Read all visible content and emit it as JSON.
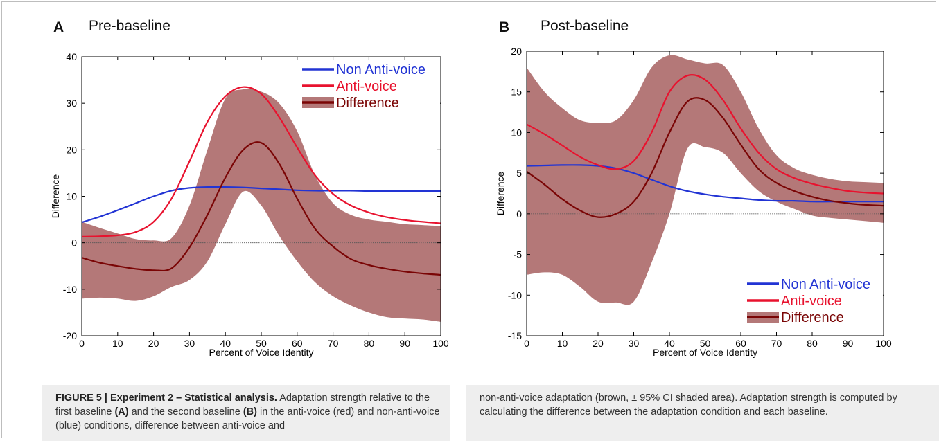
{
  "figure": {
    "panels": [
      {
        "letter": "A",
        "title": "Pre-baseline"
      },
      {
        "letter": "B",
        "title": "Post-baseline"
      }
    ],
    "caption": {
      "label": "FIGURE 5 | Experiment 2 – Statistical analysis.",
      "t1": " Adaptation strength relative to the first baseline ",
      "a": "(A)",
      "t2": " and the second baseline ",
      "b": "(B)",
      "t3": " in the anti-voice (red) and non-anti-voice (blue) conditions, difference between anti-voice and",
      "right": "non-anti-voice adaptation (brown, ± 95% CI shaded area). Adaptation strength is computed by calculating the difference between the adaptation condition and each baseline."
    }
  },
  "colors": {
    "non_anti": "#2234d4",
    "anti": "#e8122e",
    "difference": "#7a0505",
    "ci": "#b47878",
    "zero": "#555555"
  },
  "chart_data": [
    {
      "type": "line",
      "title": "Pre-baseline",
      "xlabel": "Percent of Voice Identity",
      "ylabel": "Difference",
      "xlim": [
        0,
        100
      ],
      "ylim": [
        -20,
        40
      ],
      "xticks": [
        0,
        10,
        20,
        30,
        40,
        50,
        60,
        70,
        80,
        90,
        100
      ],
      "yticks": [
        -20,
        -10,
        0,
        10,
        20,
        30,
        40
      ],
      "x": [
        0,
        5,
        10,
        15,
        20,
        25,
        30,
        35,
        40,
        45,
        50,
        55,
        60,
        65,
        70,
        75,
        80,
        85,
        90,
        95,
        100
      ],
      "series": [
        {
          "name": "Non Anti-voice",
          "key": "non_anti",
          "values": [
            4.4,
            5.6,
            7.0,
            8.5,
            10.0,
            11.2,
            11.8,
            12.0,
            12.0,
            11.9,
            11.7,
            11.5,
            11.3,
            11.2,
            11.2,
            11.2,
            11.1,
            11.1,
            11.1,
            11.1,
            11.1
          ]
        },
        {
          "name": "Anti-voice",
          "key": "anti",
          "values": [
            1.3,
            1.4,
            1.6,
            2.3,
            4.5,
            9.5,
            17.5,
            26.0,
            31.5,
            33.5,
            32.0,
            27.0,
            20.5,
            14.5,
            10.5,
            8.0,
            6.5,
            5.5,
            4.9,
            4.5,
            4.2
          ]
        },
        {
          "name": "Difference",
          "key": "difference",
          "values": [
            -3.2,
            -4.3,
            -5.0,
            -5.6,
            -5.9,
            -5.5,
            -1.0,
            6.0,
            14.0,
            20.0,
            21.5,
            17.0,
            9.5,
            3.0,
            -0.8,
            -3.5,
            -4.8,
            -5.6,
            -6.2,
            -6.6,
            -6.9
          ]
        }
      ],
      "ci_upper": [
        4.5,
        3.2,
        2.0,
        0.8,
        0.5,
        1.0,
        8.0,
        20.0,
        31.0,
        33.0,
        32.5,
        30.0,
        24.0,
        14.5,
        8.5,
        6.0,
        5.0,
        4.5,
        4.0,
        3.8,
        3.6
      ],
      "ci_lower": [
        -12.0,
        -11.8,
        -12.0,
        -12.5,
        -11.5,
        -9.5,
        -8.0,
        -4.0,
        4.0,
        11.0,
        8.0,
        1.5,
        -4.0,
        -8.5,
        -11.5,
        -13.5,
        -15.0,
        -16.0,
        -16.3,
        -16.5,
        -17.0
      ],
      "legend": [
        "Non Anti-voice",
        "Anti-voice",
        "Difference"
      ],
      "legend_position": "top-right",
      "grid": false
    },
    {
      "type": "line",
      "title": "Post-baseline",
      "xlabel": "Percent of Voice Identity",
      "ylabel": "Difference",
      "xlim": [
        0,
        100
      ],
      "ylim": [
        -15,
        20
      ],
      "xticks": [
        0,
        10,
        20,
        30,
        40,
        50,
        60,
        70,
        80,
        90,
        100
      ],
      "yticks": [
        -15,
        -10,
        -5,
        0,
        5,
        10,
        15,
        20
      ],
      "x": [
        0,
        5,
        10,
        15,
        20,
        25,
        30,
        35,
        40,
        45,
        50,
        55,
        60,
        65,
        70,
        75,
        80,
        85,
        90,
        95,
        100
      ],
      "series": [
        {
          "name": "Non Anti-voice",
          "key": "non_anti",
          "values": [
            5.9,
            5.95,
            6.0,
            6.0,
            5.9,
            5.6,
            5.0,
            4.2,
            3.4,
            2.8,
            2.4,
            2.1,
            1.9,
            1.7,
            1.6,
            1.6,
            1.5,
            1.5,
            1.5,
            1.5,
            1.5
          ]
        },
        {
          "name": "Anti-voice",
          "key": "anti",
          "values": [
            11.0,
            9.8,
            8.4,
            7.0,
            6.0,
            5.5,
            6.5,
            10.0,
            15.0,
            17.0,
            16.5,
            14.0,
            10.5,
            7.5,
            5.5,
            4.4,
            3.7,
            3.2,
            2.8,
            2.6,
            2.5
          ]
        },
        {
          "name": "Difference",
          "key": "difference",
          "values": [
            5.2,
            3.6,
            1.8,
            0.4,
            -0.4,
            0.0,
            1.5,
            5.0,
            10.0,
            13.8,
            14.0,
            11.8,
            8.5,
            5.5,
            3.8,
            2.8,
            2.1,
            1.6,
            1.3,
            1.1,
            1.0
          ]
        }
      ],
      "ci_upper": [
        18.0,
        15.0,
        13.0,
        11.5,
        11.2,
        11.5,
        14.0,
        18.0,
        19.5,
        19.0,
        18.5,
        18.3,
        15.0,
        10.5,
        7.2,
        5.6,
        4.8,
        4.3,
        4.0,
        3.9,
        3.8
      ],
      "ci_lower": [
        -7.5,
        -7.2,
        -7.5,
        -9.0,
        -10.8,
        -10.9,
        -10.8,
        -6.0,
        0.0,
        8.0,
        8.2,
        7.5,
        5.0,
        2.8,
        1.5,
        0.6,
        -0.2,
        -0.5,
        -0.7,
        -0.9,
        -1.1
      ],
      "legend": [
        "Non Anti-voice",
        "Anti-voice",
        "Difference"
      ],
      "legend_position": "bottom-right",
      "grid": false
    }
  ]
}
